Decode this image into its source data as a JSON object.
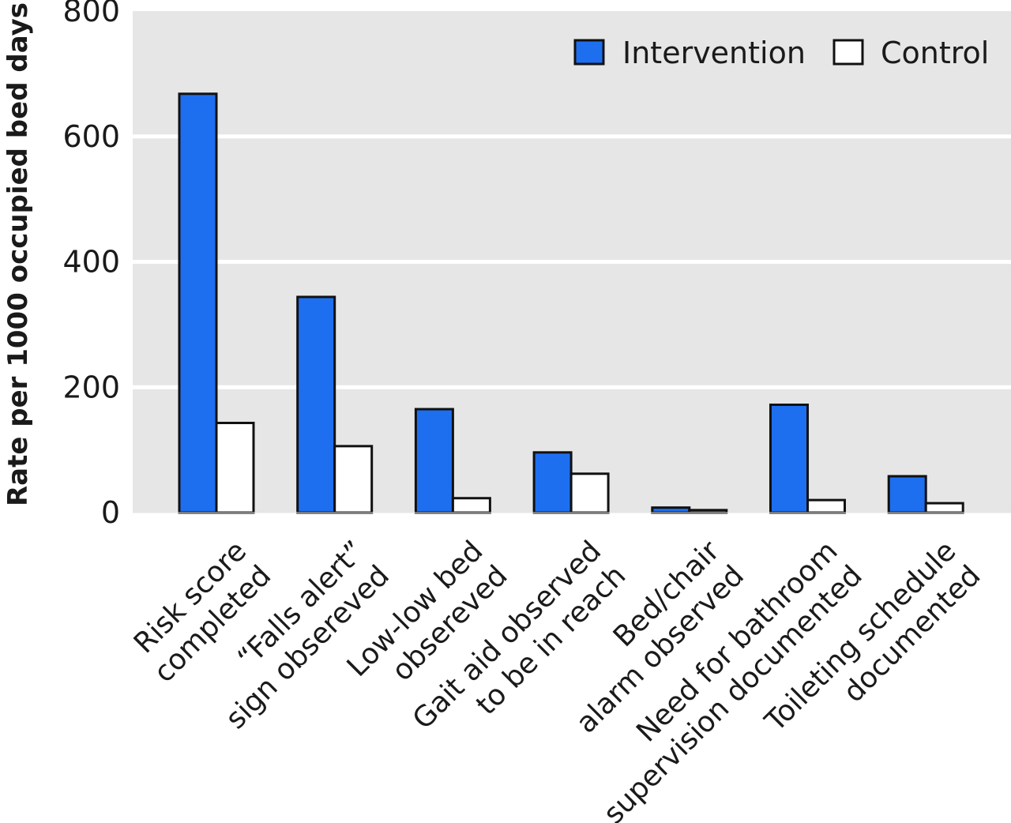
{
  "chart_data": {
    "type": "bar",
    "title": "",
    "xlabel": "",
    "ylabel": "Rate per 1000 occupied bed days",
    "ylim": [
      0,
      800
    ],
    "yticks": [
      0,
      200,
      400,
      600,
      800
    ],
    "grid": true,
    "legend_position": "top-right",
    "categories": [
      [
        "Risk score",
        "completed"
      ],
      [
        "“Falls alert”",
        "sign obsereved"
      ],
      [
        "Low-low bed",
        "obsereved"
      ],
      [
        "Gait aid observed",
        "to be in reach"
      ],
      [
        "Bed/chair",
        "alarm observed"
      ],
      [
        "Need for bathroom",
        "supervision documented"
      ],
      [
        "Toileting schedule",
        "documented"
      ]
    ],
    "series": [
      {
        "name": "Intervention",
        "color": "#1e6ff0",
        "values": [
          668,
          344,
          165,
          96,
          8,
          172,
          58
        ]
      },
      {
        "name": "Control",
        "color": "#ffffff",
        "values": [
          143,
          106,
          23,
          62,
          4,
          20,
          15
        ]
      }
    ],
    "colors": {
      "plot_background": "#e6e6e6",
      "grid": "#ffffff",
      "bar_edge": "#111111"
    }
  }
}
